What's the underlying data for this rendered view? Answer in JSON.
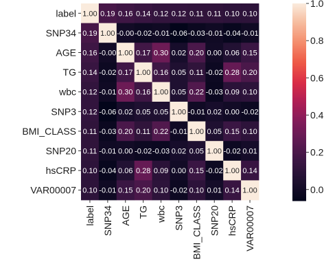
{
  "chart_data": {
    "type": "heatmap",
    "labels": [
      "label",
      "SNP34",
      "AGE",
      "TG",
      "wbc",
      "SNP3",
      "BMI_CLASS",
      "SNP20",
      "hsCRP",
      "VAR00007"
    ],
    "values": [
      [
        1.0,
        0.19,
        0.16,
        0.14,
        0.12,
        0.12,
        0.11,
        0.11,
        0.1,
        0.1
      ],
      [
        0.19,
        1.0,
        -0.0,
        -0.02,
        -0.01,
        -0.06,
        -0.03,
        -0.01,
        -0.04,
        -0.01
      ],
      [
        0.16,
        -0.0,
        1.0,
        0.17,
        0.3,
        0.02,
        0.2,
        0.0,
        0.06,
        0.15
      ],
      [
        0.14,
        -0.02,
        0.17,
        1.0,
        0.16,
        0.05,
        0.11,
        -0.02,
        0.28,
        0.2
      ],
      [
        0.12,
        -0.01,
        0.3,
        0.16,
        1.0,
        0.05,
        0.22,
        -0.03,
        0.09,
        0.1
      ],
      [
        0.12,
        -0.06,
        0.02,
        0.05,
        0.05,
        1.0,
        -0.01,
        0.02,
        0.0,
        -0.02
      ],
      [
        0.11,
        -0.03,
        0.2,
        0.11,
        0.22,
        -0.01,
        1.0,
        0.05,
        0.15,
        0.1
      ],
      [
        0.11,
        -0.01,
        0.0,
        -0.02,
        -0.03,
        0.02,
        0.05,
        1.0,
        -0.02,
        0.01
      ],
      [
        0.1,
        -0.04,
        0.06,
        0.28,
        0.09,
        0.0,
        0.15,
        -0.02,
        1.0,
        0.14
      ],
      [
        0.1,
        -0.01,
        0.15,
        0.2,
        0.1,
        -0.02,
        0.1,
        0.01,
        0.14,
        1.0
      ]
    ],
    "value_labels": [
      [
        "1.00",
        "0.19",
        "0.16",
        "0.14",
        "0.12",
        "0.12",
        "0.11",
        "0.11",
        "0.10",
        "0.10"
      ],
      [
        "0.19",
        "1.00",
        "-0.00",
        "-0.02",
        "-0.01",
        "-0.06",
        "-0.03",
        "-0.01",
        "-0.04",
        "-0.01"
      ],
      [
        "0.16",
        "-0.00",
        "1.00",
        "0.17",
        "0.30",
        "0.02",
        "0.20",
        "0.00",
        "0.06",
        "0.15"
      ],
      [
        "0.14",
        "-0.02",
        "0.17",
        "1.00",
        "0.16",
        "0.05",
        "0.11",
        "-0.02",
        "0.28",
        "0.20"
      ],
      [
        "0.12",
        "-0.01",
        "0.30",
        "0.16",
        "1.00",
        "0.05",
        "0.22",
        "-0.03",
        "0.09",
        "0.10"
      ],
      [
        "0.12",
        "-0.06",
        "0.02",
        "0.05",
        "0.05",
        "1.00",
        "-0.01",
        "0.02",
        "0.00",
        "-0.02"
      ],
      [
        "0.11",
        "-0.03",
        "0.20",
        "0.11",
        "0.22",
        "-0.01",
        "1.00",
        "0.05",
        "0.15",
        "0.10"
      ],
      [
        "0.11",
        "-0.01",
        "0.00",
        "-0.02",
        "-0.03",
        "0.02",
        "0.05",
        "1.00",
        "-0.02",
        "0.01"
      ],
      [
        "0.10",
        "-0.04",
        "0.06",
        "0.28",
        "0.09",
        "0.00",
        "0.15",
        "-0.02",
        "1.00",
        "0.14"
      ],
      [
        "0.10",
        "-0.01",
        "0.15",
        "0.20",
        "0.10",
        "-0.02",
        "0.10",
        "0.01",
        "0.14",
        "1.00"
      ]
    ],
    "colorbar": {
      "range": [
        -0.06,
        1.0
      ],
      "ticks": [
        0.0,
        0.2,
        0.4,
        0.6,
        0.8,
        1.0
      ],
      "tick_labels": [
        "0.0",
        "0.2",
        "0.4",
        "0.6",
        "0.8",
        "1.0"
      ]
    },
    "colormap": "rocket",
    "colors": {
      "low": "#03051a",
      "high": "#faebdd"
    }
  }
}
